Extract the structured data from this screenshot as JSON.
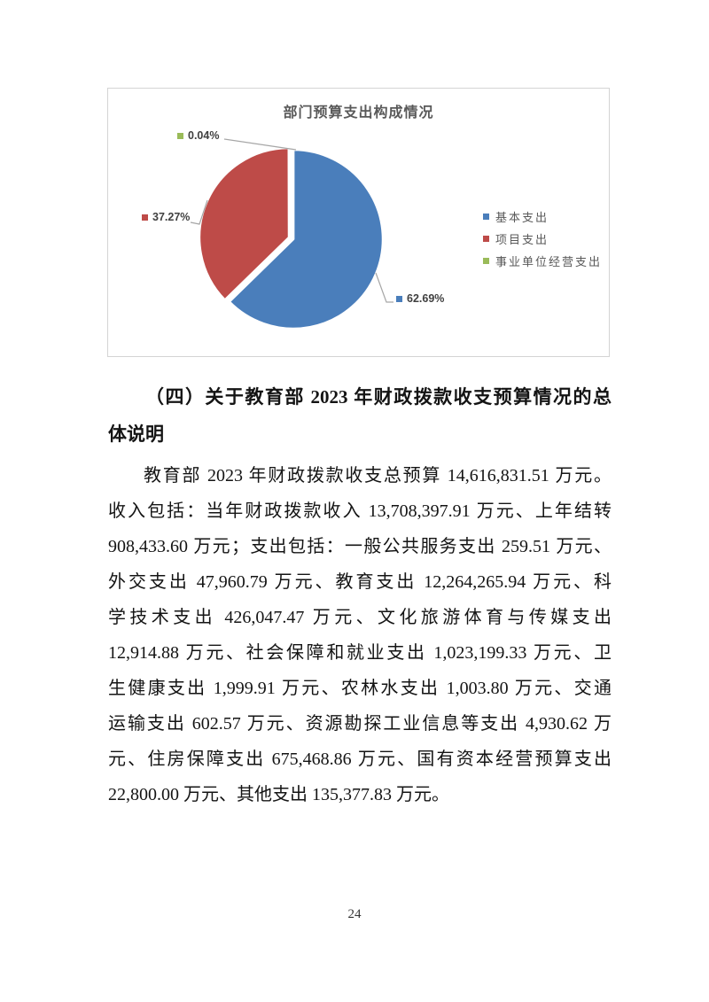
{
  "page": {
    "number": "24"
  },
  "chart_data": {
    "type": "pie",
    "title": "部门预算支出构成情况",
    "categories": [
      "基本支出",
      "项目支出",
      "事业单位经营支出"
    ],
    "values": [
      62.69,
      37.27,
      0.04
    ],
    "unit": "%",
    "data_labels": [
      "62.69%",
      "37.27%",
      "0.04%"
    ],
    "colors": [
      "#4A7EBB",
      "#BE4B48",
      "#9ABB59"
    ],
    "legend_position": "right",
    "start_angle_deg": 0,
    "direction": "clockwise",
    "label_color": "#404040",
    "title_color": "#595959",
    "border_color": "#d4d4d4"
  },
  "document": {
    "heading": {
      "line1": "（四）关于教育部 2023 年财政拨款收支预算情况的总",
      "line2": "体说明"
    },
    "paragraph_lines": [
      "教育部 2023 年财政拨款收支总预算 14,616,831.51 万元。",
      "收入包括：当年财政拨款收入 13,708,397.91 万元、上年结转",
      "908,433.60 万元；支出包括：一般公共服务支出 259.51 万元、",
      "外交支出 47,960.79 万元、教育支出 12,264,265.94 万元、科",
      "学技术支出 426,047.47 万元、文化旅游体育与传媒支出",
      "12,914.88 万元、社会保障和就业支出 1,023,199.33 万元、卫",
      "生健康支出 1,999.91 万元、农林水支出 1,003.80 万元、交通",
      "运输支出 602.57 万元、资源勘探工业信息等支出 4,930.62 万",
      "元、住房保障支出 675,468.86 万元、国有资本经营预算支出",
      "22,800.00 万元、其他支出 135,377.83 万元。"
    ]
  }
}
